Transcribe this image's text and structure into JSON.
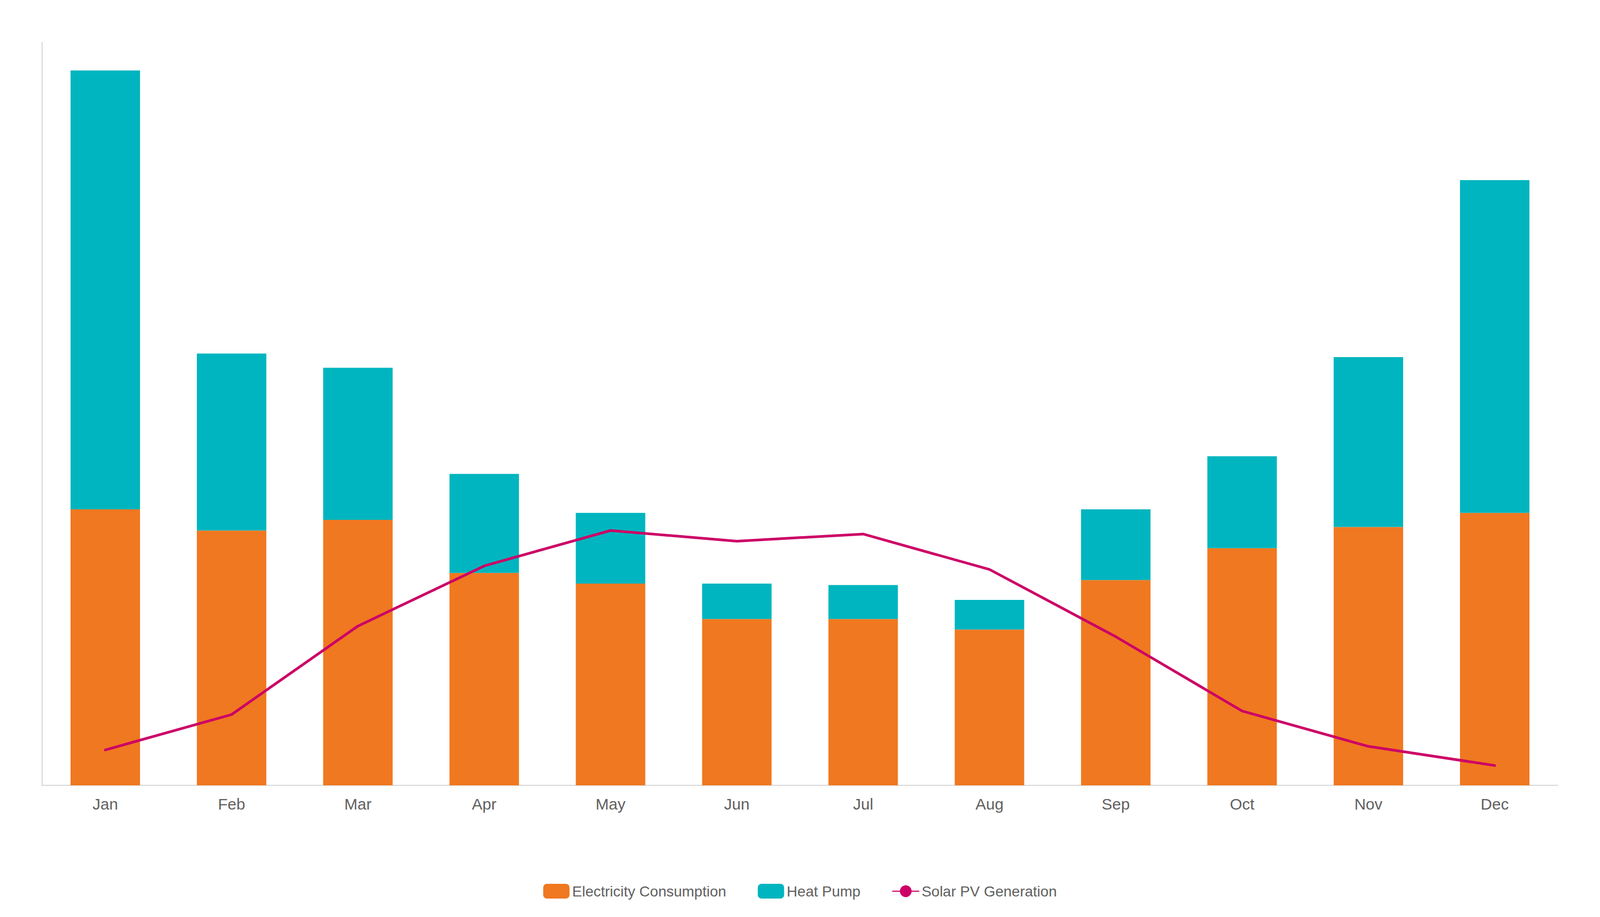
{
  "chart_data": {
    "type": "bar",
    "categories": [
      "Jan",
      "Feb",
      "Mar",
      "Apr",
      "May",
      "Jun",
      "Jul",
      "Aug",
      "Sep",
      "Oct",
      "Nov",
      "Dec"
    ],
    "series": [
      {
        "name": "Electricity Consumption",
        "type": "bar",
        "color": "#f07820",
        "values": [
          390,
          360,
          375,
          300,
          285,
          235,
          235,
          220,
          290,
          335,
          365,
          385
        ]
      },
      {
        "name": "Heat Pump",
        "type": "bar",
        "color": "#00b5bf",
        "values": [
          620,
          250,
          215,
          140,
          100,
          50,
          48,
          42,
          100,
          130,
          240,
          470
        ]
      },
      {
        "name": "Solar PV Generation",
        "type": "line",
        "color": "#cc0066",
        "values": [
          50,
          100,
          225,
          310,
          360,
          345,
          355,
          305,
          210,
          105,
          55,
          28
        ]
      }
    ],
    "stacked": true,
    "ylim": [
      0,
      1050
    ],
    "tick_labels": "x",
    "grid": false,
    "legend": "bottom"
  }
}
